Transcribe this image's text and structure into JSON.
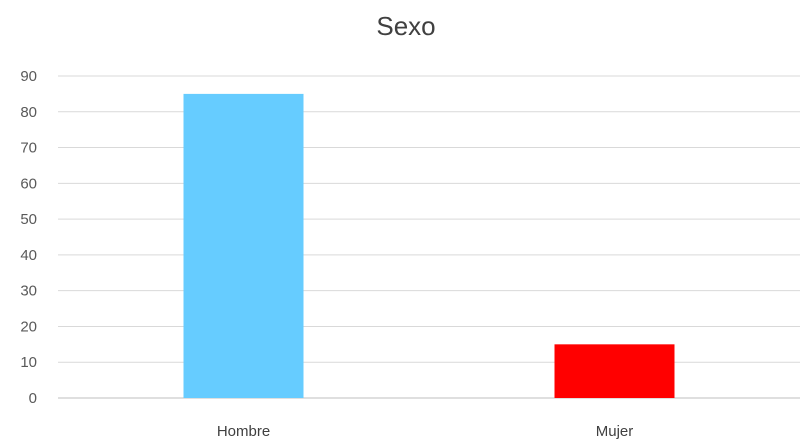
{
  "chart_data": {
    "type": "bar",
    "title": "Sexo",
    "xlabel": "",
    "ylabel": "",
    "categories": [
      "Hombre",
      "Mujer"
    ],
    "values": [
      85,
      15
    ],
    "colors": [
      "#66CCFF",
      "#FF0000"
    ],
    "ylim": [
      0,
      90
    ],
    "yticks": [
      0,
      10,
      20,
      30,
      40,
      50,
      60,
      70,
      80,
      90
    ],
    "grid": true,
    "legend": "none"
  }
}
